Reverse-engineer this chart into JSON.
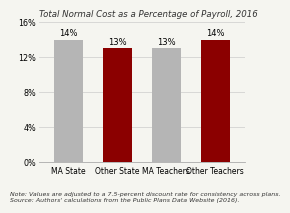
{
  "title": "Total Normal Cost as a Percentage of Payroll, 2016",
  "categories": [
    "MA State",
    "Other State",
    "MA Teachers",
    "Other Teachers"
  ],
  "values": [
    14,
    13,
    13,
    14
  ],
  "bar_colors": [
    "#b5b5b5",
    "#8b0000",
    "#b5b5b5",
    "#8b0000"
  ],
  "ylim": [
    0,
    16
  ],
  "yticks": [
    0,
    4,
    8,
    12,
    16
  ],
  "ytick_labels": [
    "0%",
    "4%",
    "8%",
    "12%",
    "16%"
  ],
  "note_line1": "Note: Values are adjusted to a 7.5-percent discount rate for consistency across plans.",
  "note_line2": "Source: Authors' calculations from the Public Plans Data Website (2016).",
  "background_color": "#f5f5f0",
  "title_fontsize": 6.2,
  "label_fontsize": 5.5,
  "tick_fontsize": 5.8,
  "note_fontsize": 4.5,
  "bar_value_fontsize": 6.0,
  "bar_width": 0.6
}
